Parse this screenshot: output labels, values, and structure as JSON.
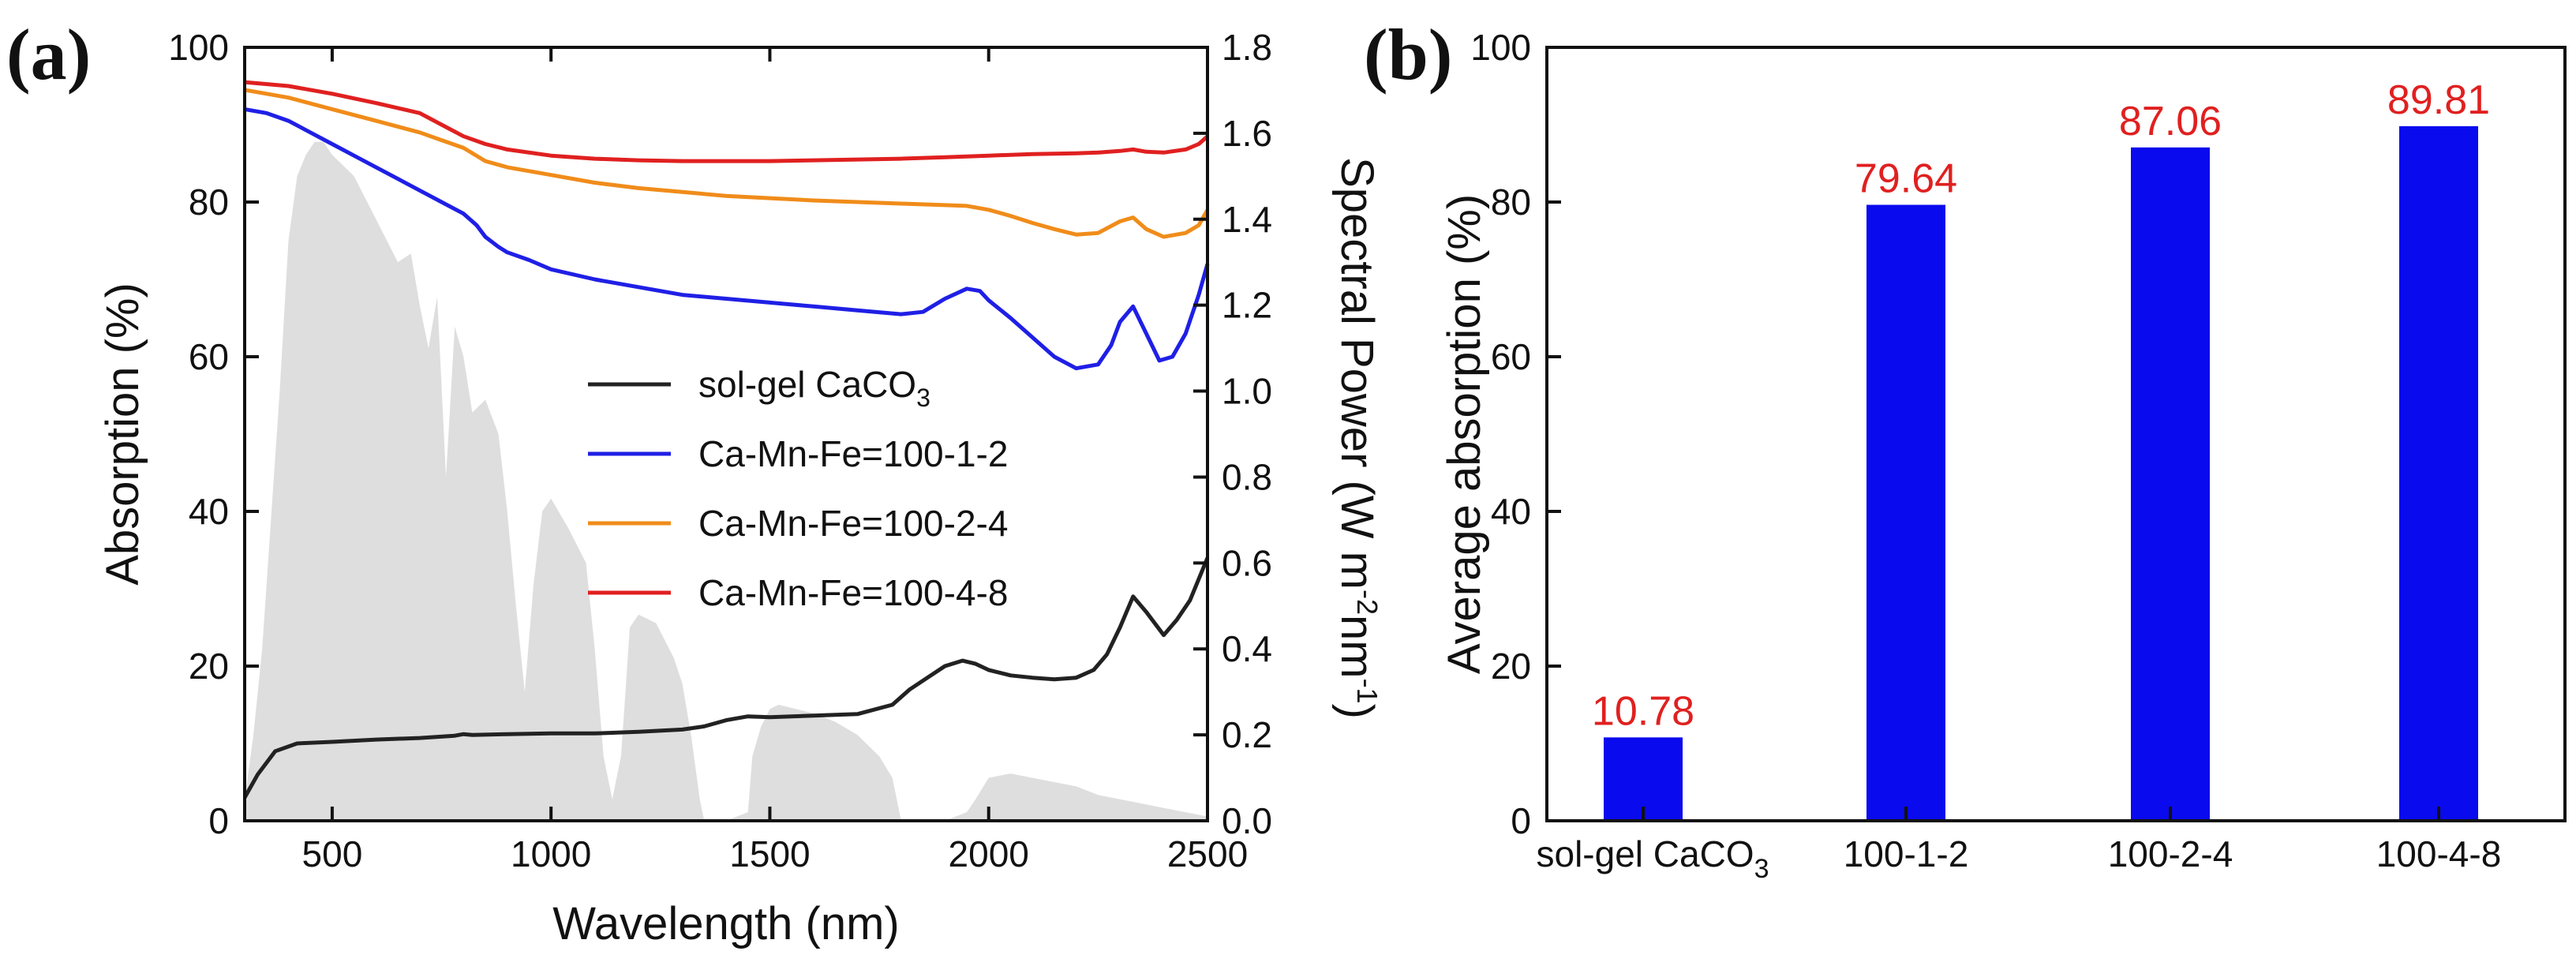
{
  "chart_data": [
    {
      "panel_label": "(a)",
      "type": "line",
      "xlabel": "Wavelength (nm)",
      "ylabel": "Absorption (%)",
      "y2label_main": "Spectral Power (W m",
      "y2label_sup1": "-2",
      "y2label_mid": "nm",
      "y2label_sup2": "-1",
      "y2label_end": ")",
      "xlim": [
        300,
        2500
      ],
      "ylim": [
        0,
        100
      ],
      "y2lim": [
        0,
        1.8
      ],
      "xticks": [
        500,
        1000,
        1500,
        2000,
        2500
      ],
      "yticks": [
        0,
        20,
        40,
        60,
        80,
        100
      ],
      "y2ticks": [
        "0.0",
        "0.2",
        "0.4",
        "0.6",
        "0.8",
        "1.0",
        "1.2",
        "1.4",
        "1.6",
        "1.8"
      ],
      "legend": [
        {
          "label_main": "sol-gel CaCO",
          "label_sub": "3",
          "color": "#222222"
        },
        {
          "label_main": "Ca-Mn-Fe=100-1-2",
          "label_sub": "",
          "color": "#1f1fe6"
        },
        {
          "label_main": "Ca-Mn-Fe=100-2-4",
          "label_sub": "",
          "color": "#f08c1a"
        },
        {
          "label_main": "Ca-Mn-Fe=100-4-8",
          "label_sub": "",
          "color": "#e02020"
        }
      ],
      "series": [
        {
          "name": "sol-gel CaCO3",
          "color": "#222222",
          "x": [
            300,
            330,
            370,
            420,
            500,
            600,
            700,
            780,
            800,
            820,
            900,
            1000,
            1100,
            1200,
            1300,
            1350,
            1400,
            1450,
            1500,
            1600,
            1700,
            1780,
            1820,
            1860,
            1900,
            1940,
            1970,
            2000,
            2050,
            2100,
            2150,
            2200,
            2240,
            2270,
            2300,
            2330,
            2360,
            2400,
            2430,
            2460,
            2500
          ],
          "y": [
            3,
            6,
            9,
            10,
            10.2,
            10.5,
            10.7,
            11,
            11.2,
            11.1,
            11.2,
            11.3,
            11.3,
            11.5,
            11.8,
            12.2,
            13,
            13.5,
            13.4,
            13.6,
            13.8,
            15,
            17,
            18.5,
            20,
            20.7,
            20.3,
            19.5,
            18.8,
            18.5,
            18.3,
            18.5,
            19.5,
            21.5,
            25,
            29,
            27,
            24,
            26,
            28.5,
            34
          ]
        },
        {
          "name": "Ca-Mn-Fe=100-1-2",
          "color": "#1f1fe6",
          "x": [
            300,
            350,
            400,
            450,
            500,
            550,
            600,
            650,
            700,
            750,
            800,
            830,
            850,
            880,
            900,
            950,
            1000,
            1100,
            1200,
            1300,
            1400,
            1500,
            1600,
            1700,
            1800,
            1850,
            1900,
            1950,
            1980,
            2000,
            2050,
            2100,
            2150,
            2200,
            2250,
            2280,
            2300,
            2330,
            2360,
            2390,
            2420,
            2450,
            2480,
            2500
          ],
          "y": [
            92,
            91.5,
            90.5,
            89,
            87.5,
            86,
            84.5,
            83,
            81.5,
            80,
            78.5,
            77,
            75.5,
            74.2,
            73.5,
            72.5,
            71.3,
            70,
            69,
            68,
            67.5,
            67,
            66.5,
            66,
            65.5,
            65.8,
            67.5,
            68.8,
            68.5,
            67.3,
            65,
            62.5,
            60,
            58.5,
            59,
            61.5,
            64.5,
            66.5,
            63,
            59.5,
            60,
            63,
            68,
            72
          ]
        },
        {
          "name": "Ca-Mn-Fe=100-2-4",
          "color": "#f08c1a",
          "x": [
            300,
            400,
            500,
            600,
            700,
            750,
            800,
            850,
            900,
            1000,
            1100,
            1200,
            1300,
            1400,
            1500,
            1600,
            1700,
            1800,
            1900,
            1950,
            2000,
            2050,
            2100,
            2150,
            2200,
            2250,
            2300,
            2330,
            2360,
            2400,
            2450,
            2480,
            2500
          ],
          "y": [
            94.5,
            93.5,
            92,
            90.5,
            89,
            88,
            87,
            85.3,
            84.5,
            83.5,
            82.5,
            81.8,
            81.3,
            80.8,
            80.5,
            80.2,
            80,
            79.8,
            79.6,
            79.5,
            79,
            78.2,
            77.3,
            76.5,
            75.8,
            76,
            77.5,
            78,
            76.5,
            75.5,
            76,
            77,
            79
          ]
        },
        {
          "name": "Ca-Mn-Fe=100-4-8",
          "color": "#e02020",
          "x": [
            300,
            400,
            500,
            600,
            700,
            750,
            800,
            850,
            900,
            1000,
            1100,
            1200,
            1300,
            1400,
            1500,
            1600,
            1700,
            1800,
            1900,
            2000,
            2100,
            2200,
            2250,
            2300,
            2330,
            2360,
            2400,
            2450,
            2480,
            2500
          ],
          "y": [
            95.5,
            95,
            94,
            92.8,
            91.5,
            90,
            88.5,
            87.5,
            86.8,
            86,
            85.6,
            85.4,
            85.3,
            85.3,
            85.3,
            85.4,
            85.5,
            85.6,
            85.8,
            86,
            86.2,
            86.3,
            86.4,
            86.6,
            86.8,
            86.5,
            86.4,
            86.8,
            87.5,
            88.5
          ]
        }
      ],
      "solar_spectrum": {
        "name": "spectral power (gray fill)",
        "color": "#dedede",
        "x": [
          300,
          320,
          340,
          360,
          380,
          400,
          420,
          440,
          460,
          480,
          500,
          550,
          600,
          650,
          680,
          700,
          720,
          740,
          760,
          780,
          800,
          820,
          850,
          880,
          900,
          920,
          940,
          960,
          980,
          1000,
          1040,
          1080,
          1100,
          1120,
          1140,
          1160,
          1170,
          1180,
          1200,
          1220,
          1240,
          1260,
          1280,
          1300,
          1320,
          1340,
          1350,
          1400,
          1450,
          1460,
          1480,
          1500,
          1520,
          1560,
          1600,
          1650,
          1700,
          1750,
          1780,
          1800,
          1850,
          1900,
          1950,
          1970,
          2000,
          2050,
          2100,
          2150,
          2200,
          2250,
          2300,
          2350,
          2400,
          2450,
          2500
        ],
        "y": [
          0.05,
          0.2,
          0.4,
          0.7,
          1.0,
          1.35,
          1.5,
          1.55,
          1.58,
          1.58,
          1.55,
          1.5,
          1.4,
          1.3,
          1.32,
          1.2,
          1.1,
          1.22,
          0.8,
          1.15,
          1.08,
          0.95,
          0.98,
          0.9,
          0.72,
          0.5,
          0.3,
          0.55,
          0.72,
          0.75,
          0.68,
          0.6,
          0.4,
          0.15,
          0.05,
          0.15,
          0.3,
          0.45,
          0.48,
          0.47,
          0.46,
          0.42,
          0.38,
          0.32,
          0.2,
          0.05,
          0.0,
          0.0,
          0.02,
          0.15,
          0.22,
          0.26,
          0.27,
          0.26,
          0.25,
          0.23,
          0.2,
          0.15,
          0.1,
          0.0,
          0.0,
          0.0,
          0.02,
          0.05,
          0.1,
          0.11,
          0.1,
          0.09,
          0.08,
          0.06,
          0.05,
          0.04,
          0.03,
          0.02,
          0.01
        ]
      }
    },
    {
      "panel_label": "(b)",
      "type": "bar",
      "ylabel": "Average absorption (%)",
      "ylim": [
        0,
        100
      ],
      "yticks": [
        0,
        20,
        40,
        60,
        80,
        100
      ],
      "bar_color": "#0a0aee",
      "label_color": "#e02020",
      "categories": [
        {
          "main": "sol-gel CaCO",
          "sub": "3"
        },
        {
          "main": "100-1-2",
          "sub": ""
        },
        {
          "main": "100-2-4",
          "sub": ""
        },
        {
          "main": "100-4-8",
          "sub": ""
        }
      ],
      "values": [
        10.78,
        79.64,
        87.06,
        89.81
      ],
      "value_labels": [
        "10.78",
        "79.64",
        "87.06",
        "89.81"
      ]
    }
  ]
}
